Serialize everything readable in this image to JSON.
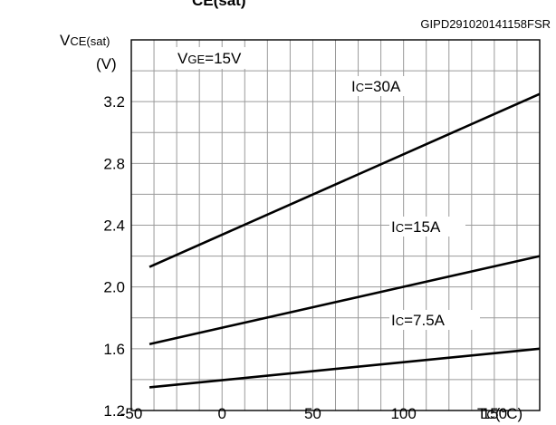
{
  "header_fragment": "CE(sat)",
  "figure_code": "GIPD291020141158FSR",
  "chart_data": {
    "type": "line",
    "xlabel": {
      "main": "T",
      "sub": "C",
      "unit": "(°C)"
    },
    "ylabel": {
      "main": "V",
      "sub": "CE(sat)",
      "unit": "(V)"
    },
    "condition": {
      "main": "V",
      "sub": "GE",
      "rest": "=15V"
    },
    "xlim": [
      -50,
      175
    ],
    "ylim": [
      1.2,
      3.6
    ],
    "x_ticks": [
      -50,
      0,
      50,
      100,
      150
    ],
    "x_tick_labels": [
      "-50",
      "0",
      "50",
      "100",
      "150"
    ],
    "y_ticks": [
      1.2,
      1.6,
      2.0,
      2.4,
      2.8,
      3.2
    ],
    "y_tick_labels": [
      "1.2",
      "1.6",
      "2.0",
      "2.4",
      "2.8",
      "3.2"
    ],
    "grid": true,
    "series": [
      {
        "name": "Ic=30A",
        "label": {
          "main": "I",
          "sub": "C",
          "rest": "=30A"
        },
        "x": [
          -40,
          175
        ],
        "y": [
          2.13,
          3.25
        ]
      },
      {
        "name": "Ic=15A",
        "label": {
          "main": "I",
          "sub": "C",
          "rest": "=15A"
        },
        "x": [
          -40,
          175
        ],
        "y": [
          1.63,
          2.2
        ]
      },
      {
        "name": "Ic=7.5A",
        "label": {
          "main": "I",
          "sub": "C",
          "rest": "=7.5A"
        },
        "x": [
          -40,
          175
        ],
        "y": [
          1.35,
          1.6
        ]
      }
    ]
  }
}
